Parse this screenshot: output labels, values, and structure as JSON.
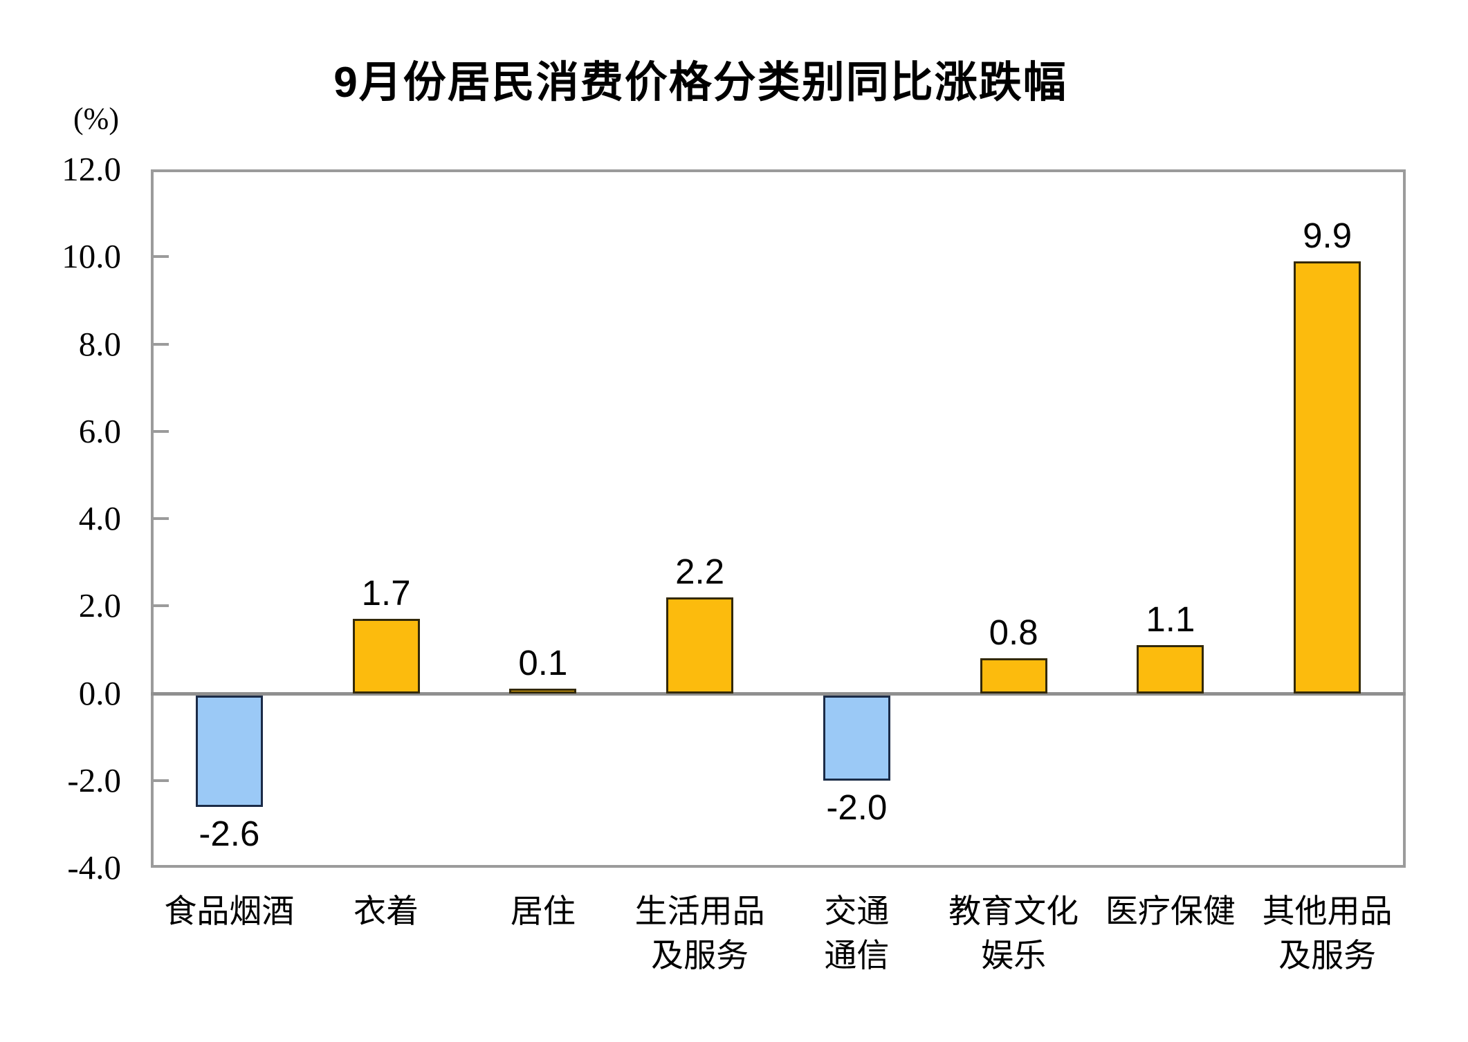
{
  "title": "9月份居民消费价格分类别同比涨跌幅",
  "unit_label": "(%)",
  "chart_data": {
    "type": "bar",
    "title": "9月份居民消费价格分类别同比涨跌幅",
    "xlabel": "",
    "ylabel": "(%)",
    "categories": [
      "食品烟酒",
      "衣着",
      "居住",
      "生活用品\n及服务",
      "交通\n通信",
      "教育文化\n娱乐",
      "医疗保健",
      "其他用品\n及服务"
    ],
    "values": [
      -2.6,
      1.7,
      0.1,
      2.2,
      -2.0,
      0.8,
      1.1,
      9.9
    ],
    "value_labels": [
      "-2.6",
      "1.7",
      "0.1",
      "2.2",
      "-2.0",
      "0.8",
      "1.1",
      "9.9"
    ],
    "ylim": [
      -4.0,
      12.0
    ],
    "ytick_step": 2.0,
    "ytick_labels": [
      "12.0",
      "10.0",
      "8.0",
      "6.0",
      "4.0",
      "2.0",
      "0.0",
      "-2.0",
      "-4.0"
    ],
    "grid": false,
    "legend": null,
    "zero_line": true,
    "colors": {
      "positive_bar_fill": "#fcbb0d",
      "positive_bar_border": "#33290a",
      "negative_bar_fill": "#9bc9f6",
      "negative_bar_border": "#1b2b47",
      "axis_border": "#9b9b9b",
      "zero_line": "#8f8f8f",
      "text": "#000000"
    }
  }
}
